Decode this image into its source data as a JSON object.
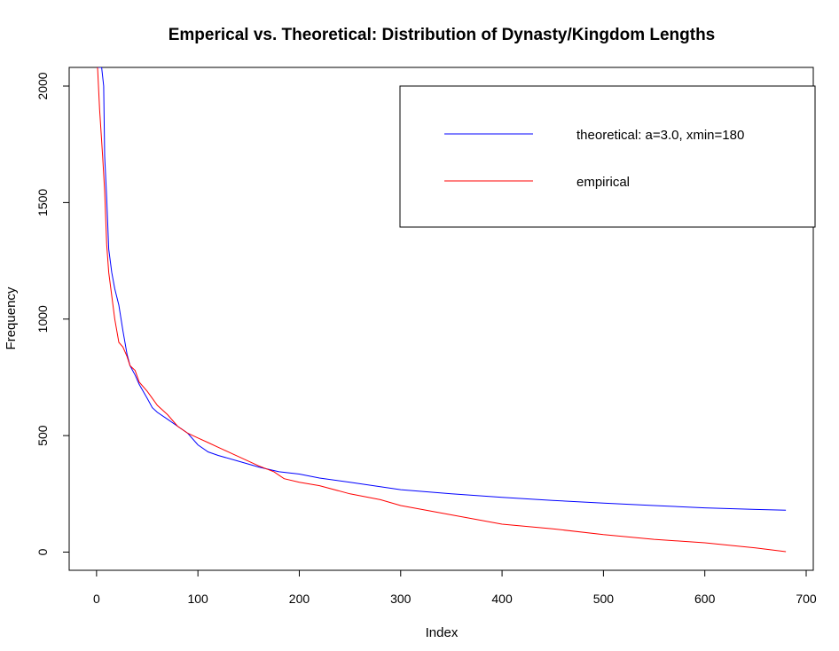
{
  "chart_data": {
    "type": "line",
    "title": "Emperical vs. Theoretical: Distribution of Dynasty/Kingdom Lengths",
    "xlabel": "Index",
    "ylabel": "Frequency",
    "xlim": [
      -27,
      707
    ],
    "ylim": [
      -78,
      2080
    ],
    "x_ticks": [
      0,
      100,
      200,
      300,
      400,
      500,
      600,
      700
    ],
    "y_ticks": [
      0,
      500,
      1000,
      1500,
      2000
    ],
    "grid": false,
    "legend_position": "top-right",
    "series": [
      {
        "name": "theoretical: a=3.0, xmin=180",
        "color": "#0000ff",
        "x": [
          1,
          5,
          7,
          8,
          10,
          12,
          15,
          18,
          22,
          26,
          30,
          33,
          38,
          42,
          50,
          55,
          60,
          70,
          80,
          90,
          100,
          110,
          120,
          140,
          160,
          180,
          200,
          220,
          250,
          300,
          350,
          400,
          450,
          500,
          550,
          600,
          650,
          680
        ],
        "y": [
          2080,
          2080,
          2000,
          1700,
          1520,
          1300,
          1200,
          1130,
          1060,
          950,
          850,
          800,
          760,
          720,
          660,
          620,
          600,
          570,
          540,
          510,
          460,
          430,
          415,
          390,
          365,
          345,
          335,
          318,
          300,
          268,
          250,
          235,
          222,
          210,
          200,
          190,
          183,
          180
        ]
      },
      {
        "name": "empirical",
        "color": "#ff0000",
        "x": [
          1,
          3,
          6,
          8,
          10,
          12,
          15,
          18,
          22,
          26,
          30,
          33,
          38,
          42,
          50,
          55,
          60,
          70,
          80,
          90,
          100,
          110,
          120,
          140,
          160,
          175,
          185,
          200,
          220,
          250,
          280,
          300,
          350,
          400,
          450,
          500,
          550,
          600,
          650,
          680
        ],
        "y": [
          2080,
          1900,
          1700,
          1550,
          1320,
          1200,
          1100,
          1000,
          900,
          880,
          840,
          800,
          780,
          730,
          690,
          660,
          630,
          590,
          540,
          510,
          490,
          470,
          450,
          410,
          370,
          345,
          315,
          300,
          285,
          250,
          225,
          200,
          160,
          120,
          100,
          75,
          55,
          40,
          18,
          2
        ]
      }
    ]
  }
}
